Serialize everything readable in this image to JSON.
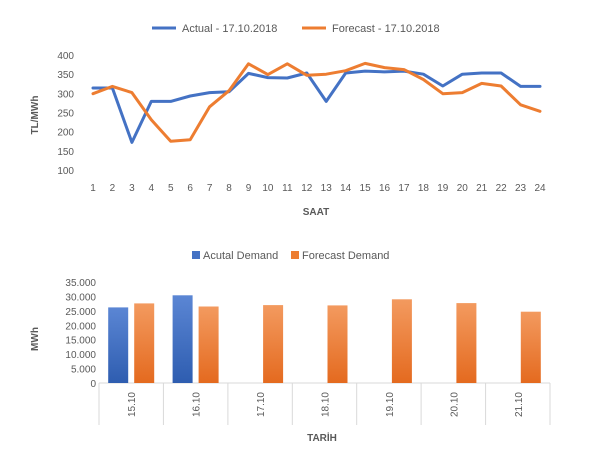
{
  "chart_data": [
    {
      "type": "line",
      "title": "",
      "xlabel": "SAAT",
      "ylabel": "TL/MWh",
      "ylim": [
        100,
        400
      ],
      "yticks": [
        100,
        150,
        200,
        250,
        300,
        350,
        400
      ],
      "grid": false,
      "legend": "top",
      "categories": [
        "1",
        "2",
        "3",
        "4",
        "5",
        "6",
        "7",
        "8",
        "9",
        "10",
        "11",
        "12",
        "13",
        "14",
        "15",
        "16",
        "17",
        "18",
        "19",
        "20",
        "21",
        "22",
        "23",
        "24"
      ],
      "series": [
        {
          "name": "Actual - 17.10.2018",
          "color": "#4472C4",
          "values": [
            314,
            314,
            172,
            279,
            279,
            293,
            302,
            304,
            352,
            341,
            340,
            353,
            279,
            353,
            358,
            356,
            358,
            350,
            319,
            350,
            353,
            353,
            318,
            318
          ]
        },
        {
          "name": "Forecast - 17.10.2018",
          "color": "#ED7D31",
          "values": [
            299,
            318,
            302,
            231,
            175,
            179,
            265,
            307,
            377,
            349,
            377,
            347,
            350,
            359,
            378,
            367,
            362,
            336,
            299,
            302,
            326,
            319,
            270,
            253
          ]
        }
      ]
    },
    {
      "type": "bar",
      "title": "",
      "xlabel": "TARİH",
      "ylabel": "MWh",
      "ylim": [
        0,
        35000
      ],
      "yticks": [
        "0",
        "5.000",
        "10.000",
        "15.000",
        "20.000",
        "25.000",
        "30.000",
        "35.000"
      ],
      "grid": false,
      "legend": "top",
      "categories": [
        "15.10",
        "16.10",
        "17.10",
        "18.10",
        "19.10",
        "20.10",
        "21.10"
      ],
      "series": [
        {
          "name": "Acutal Demand",
          "color": "#4472C4",
          "values": [
            26200,
            30400,
            null,
            null,
            null,
            null,
            null
          ]
        },
        {
          "name": "Forecast Demand",
          "color": "#ED7D31",
          "values": [
            27600,
            26500,
            27000,
            26900,
            29000,
            27700,
            24700
          ]
        }
      ]
    }
  ]
}
